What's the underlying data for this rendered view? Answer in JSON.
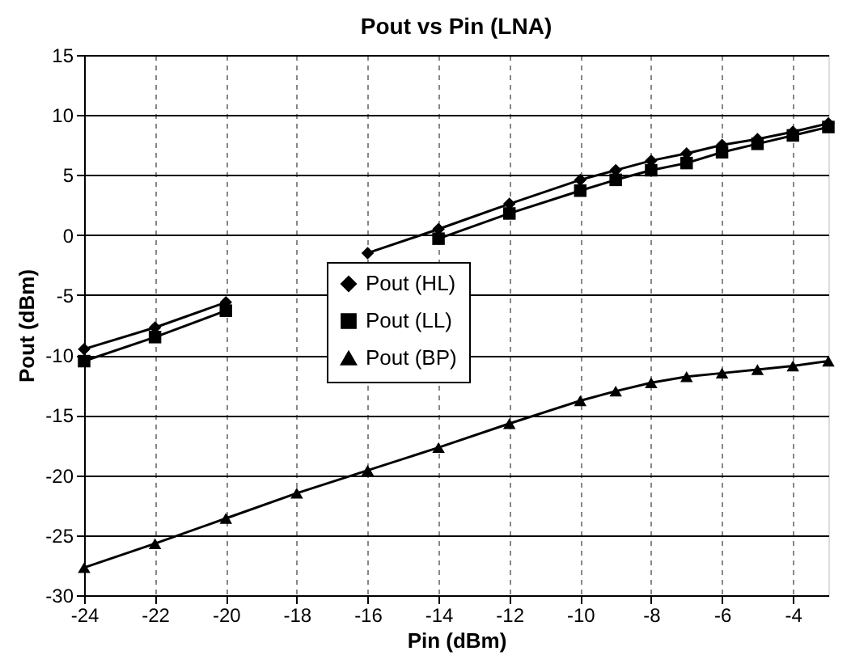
{
  "chart_data": {
    "type": "line",
    "title": "Pout vs Pin (LNA)",
    "xlabel": "Pin (dBm)",
    "ylabel": "Pout (dBm)",
    "x": [
      -24,
      -22,
      -20,
      -18,
      -16,
      -14,
      -12,
      -10,
      -9,
      -8,
      -7,
      -6,
      -5,
      -4,
      -3
    ],
    "series": [
      {
        "name": "Pout (HL)",
        "color": "#000000",
        "marker": "diamond",
        "values": [
          -9.5,
          -7.7,
          -5.6,
          null,
          -1.5,
          0.5,
          2.6,
          4.6,
          5.4,
          6.2,
          6.8,
          7.5,
          8.0,
          8.6,
          9.3
        ]
      },
      {
        "name": "Pout (LL)",
        "color": "#000000",
        "marker": "square",
        "values": [
          -10.5,
          -8.5,
          -6.3,
          null,
          null,
          -0.3,
          1.8,
          3.7,
          4.6,
          5.4,
          6.0,
          6.9,
          7.6,
          8.3,
          9.0
        ]
      },
      {
        "name": "Pout (BP)",
        "color": "#000000",
        "marker": "triangle",
        "values": [
          -27.7,
          -25.7,
          -23.6,
          -21.5,
          -19.6,
          -17.7,
          -15.7,
          -13.8,
          -13.0,
          -12.3,
          -11.8,
          -11.5,
          -11.2,
          -10.9,
          -10.5
        ]
      }
    ],
    "xlim": [
      -24,
      -3
    ],
    "xticks": [
      -24,
      -22,
      -20,
      -18,
      -16,
      -14,
      -12,
      -10,
      -8,
      -6,
      -4
    ],
    "ylim": [
      -30,
      15
    ],
    "yticks": [
      -30,
      -25,
      -20,
      -15,
      -10,
      -5,
      0,
      5,
      10,
      15
    ],
    "grid": true,
    "legend": "left",
    "line_style": "solid"
  }
}
